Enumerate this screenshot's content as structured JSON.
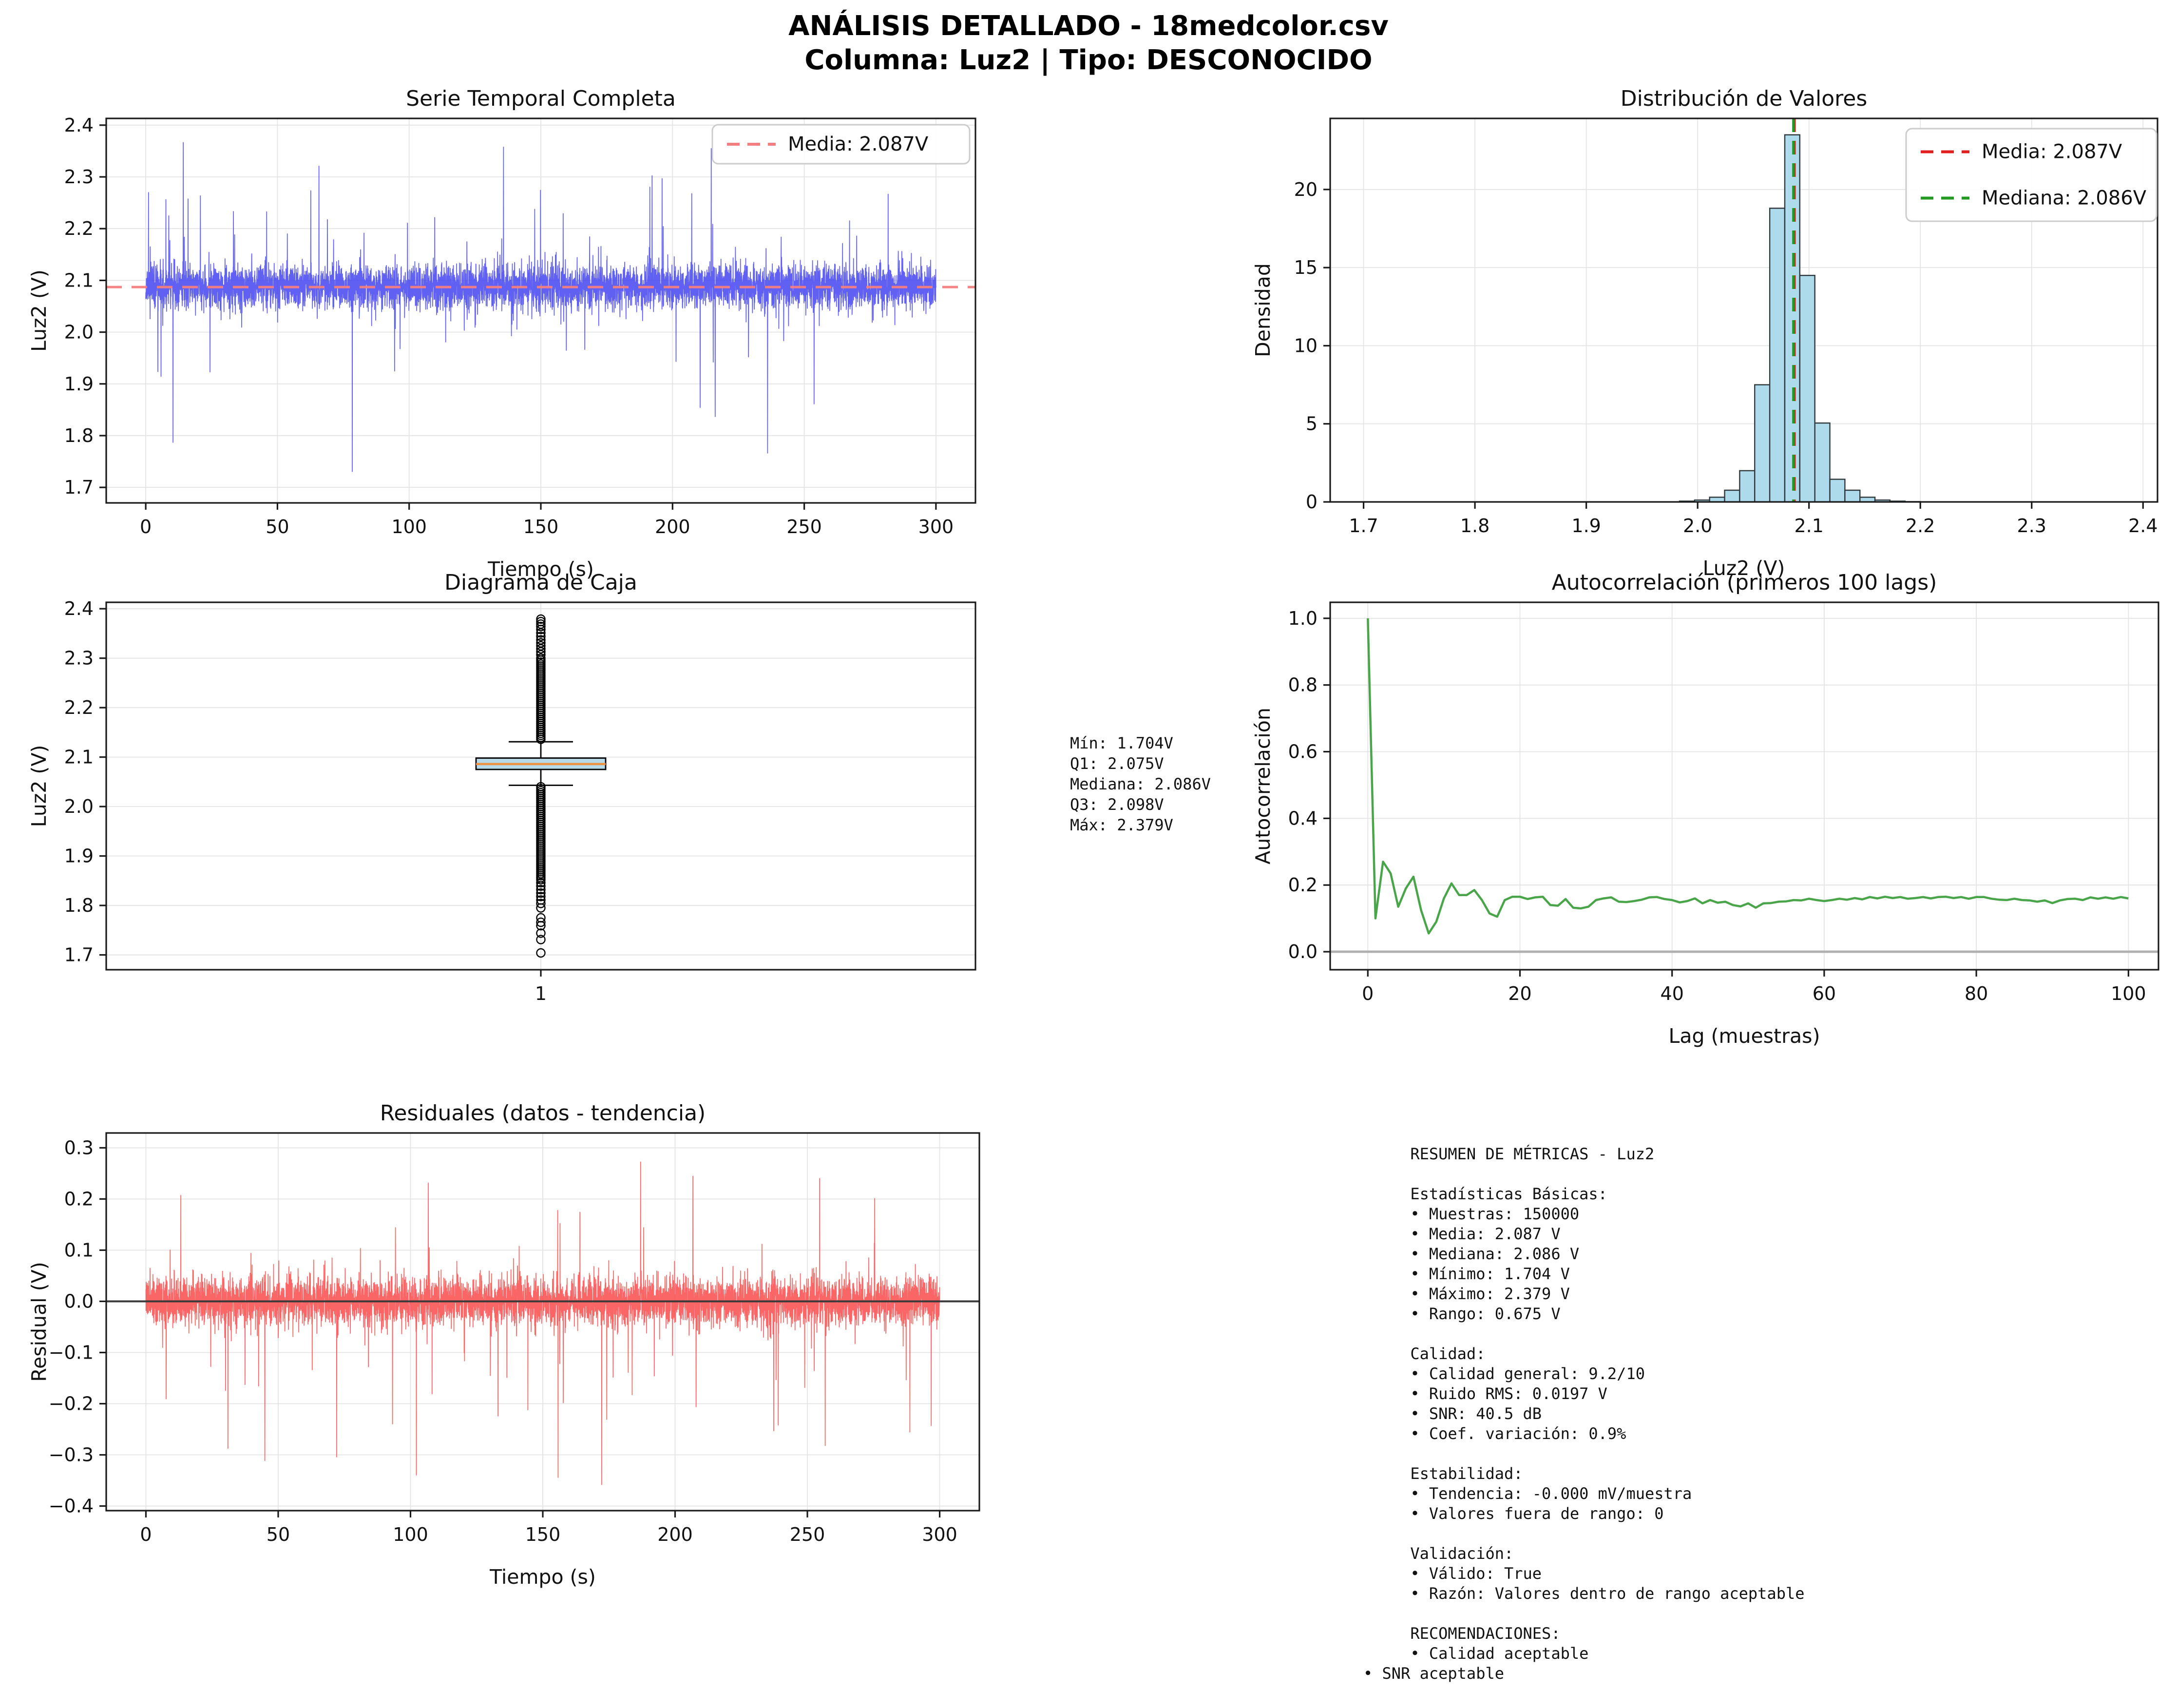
{
  "header": {
    "line1": "ANÁLISIS DETALLADO - 18medcolor.csv",
    "line2": "Columna: Luz2 | Tipo: DESCONOCIDO"
  },
  "colors": {
    "series_blue": "#3d3df0",
    "mean_salmon": "#f47d7d",
    "hist_mean_red": "#e21f1f",
    "median_green": "#229a22",
    "acf_green": "#4aa54a",
    "residual_red": "#f94b4b",
    "bar_fill": "#addbec",
    "bar_edge": "#2f373b",
    "box_fill": "#b7d9e8",
    "box_median_orange": "#ef9240",
    "grid": "#e4e4e4",
    "spine": "#1a1a1a",
    "zero_gray": "#b0b0b0"
  },
  "box_stats": {
    "text": "Mín: 1.704V\nQ1: 2.075V\nMediana: 2.086V\nQ3: 2.098V\nMáx: 2.379V"
  },
  "summary": {
    "text": "     RESUMEN DE MÉTRICAS - Luz2\n\n     Estadísticas Básicas:\n     • Muestras: 150000\n     • Media: 2.087 V\n     • Mediana: 2.086 V\n     • Mínimo: 1.704 V\n     • Máximo: 2.379 V\n     • Rango: 0.675 V\n\n     Calidad:\n     • Calidad general: 9.2/10\n     • Ruido RMS: 0.0197 V\n     • SNR: 40.5 dB\n     • Coef. variación: 0.9%\n\n     Estabilidad:\n     • Tendencia: -0.000 mV/muestra\n     • Valores fuera de rango: 0\n\n     Validación:\n     • Válido: True\n     • Razón: Valores dentro de rango aceptable\n\n     RECOMENDACIONES:\n     • Calidad aceptable\n• SNR aceptable"
  },
  "chart_data": [
    {
      "id": "timeseries",
      "type": "line",
      "title": "Serie Temporal Completa",
      "xlabel": "Tiempo (s)",
      "ylabel": "Luz2 (V)",
      "xlim": [
        -15,
        315
      ],
      "ylim": [
        1.67,
        2.413
      ],
      "xticks": {
        "values": [
          0,
          50,
          100,
          150,
          200,
          250,
          300
        ],
        "labels": [
          "0",
          "50",
          "100",
          "150",
          "200",
          "250",
          "300"
        ]
      },
      "yticks": {
        "values": [
          1.7,
          1.8,
          1.9,
          2.0,
          2.1,
          2.2,
          2.3,
          2.4
        ],
        "labels": [
          "1.7",
          "1.8",
          "1.9",
          "2.0",
          "2.1",
          "2.2",
          "2.3",
          "2.4"
        ]
      },
      "grid": true,
      "series_color": "#3d3df0",
      "mean_line": {
        "value": 2.087,
        "color": "#f47d7d",
        "dash": true
      },
      "legend": {
        "entries": [
          {
            "label": "Media: 2.087V",
            "color": "#f47d7d"
          }
        ]
      },
      "signal": {
        "seed": 11,
        "n": 6000,
        "t_max": 300,
        "mean": 2.088,
        "sd": 0.021,
        "pos_prob": 0.01,
        "pos_min": 0.04,
        "pos_max": 0.27,
        "neg_prob": 0.007,
        "neg_min": 0.04,
        "neg_max": 0.17,
        "deep_prob": 0.0013,
        "deep_min": 0.15,
        "deep_max": 0.36,
        "clamp": [
          1.702,
          2.383
        ]
      }
    },
    {
      "id": "histogram",
      "type": "bar",
      "title": "Distribución de Valores",
      "xlabel": "Luz2 (V)",
      "ylabel": "Densidad",
      "xlim": [
        1.67,
        2.413
      ],
      "ylim": [
        0,
        24.55
      ],
      "xticks": {
        "values": [
          1.7,
          1.8,
          1.9,
          2.0,
          2.1,
          2.2,
          2.3,
          2.4
        ],
        "labels": [
          "1.7",
          "1.8",
          "1.9",
          "2.0",
          "2.1",
          "2.2",
          "2.3",
          "2.4"
        ]
      },
      "yticks": {
        "values": [
          0,
          5,
          10,
          15,
          20
        ],
        "labels": [
          "0",
          "5",
          "10",
          "15",
          "20"
        ]
      },
      "grid": true,
      "bin_width": 0.0135,
      "bins": {
        "centers": [
          1.9905,
          2.004,
          2.0175,
          2.031,
          2.0445,
          2.058,
          2.0715,
          2.085,
          2.0985,
          2.112,
          2.1255,
          2.139,
          2.1525,
          2.166,
          2.1795,
          2.193
        ],
        "densities": [
          0.05,
          0.12,
          0.3,
          0.75,
          2.0,
          7.5,
          18.8,
          23.5,
          14.5,
          5.05,
          1.45,
          0.75,
          0.3,
          0.12,
          0.05,
          0.02
        ]
      },
      "bar_fill": "#addbec",
      "bar_edge": "#2f373b",
      "mean_line": {
        "value": 2.087,
        "color": "#e21f1f"
      },
      "median_line": {
        "value": 2.086,
        "color": "#229a22"
      },
      "legend": {
        "entries": [
          {
            "label": "Media: 2.087V",
            "color": "#e21f1f"
          },
          {
            "label": "Mediana: 2.086V",
            "color": "#229a22"
          }
        ]
      }
    },
    {
      "id": "boxplot",
      "type": "box",
      "title": "Diagrama de Caja",
      "xlabel": "",
      "ylabel": "Luz2 (V)",
      "xlim": [
        0.5,
        1.5
      ],
      "ylim": [
        1.67,
        2.413
      ],
      "xticks": {
        "values": [
          1
        ],
        "labels": [
          "1"
        ]
      },
      "yticks": {
        "values": [
          1.7,
          1.8,
          1.9,
          2.0,
          2.1,
          2.2,
          2.3,
          2.4
        ],
        "labels": [
          "1.7",
          "1.8",
          "1.9",
          "2.0",
          "2.1",
          "2.2",
          "2.3",
          "2.4"
        ]
      },
      "grid": true,
      "box": {
        "position": 1,
        "q1": 2.075,
        "median": 2.086,
        "q3": 2.098,
        "whisker_low": 2.043,
        "whisker_high": 2.131,
        "outliers_upper": {
          "dense": {
            "from": 2.136,
            "to": 2.302,
            "step": 0.004
          },
          "sparse": [
            2.307,
            2.313,
            2.319,
            2.325,
            2.331,
            2.337,
            2.344,
            2.351,
            2.358,
            2.364,
            2.369,
            2.374,
            2.379
          ]
        },
        "outliers_lower": {
          "dense": {
            "from": 2.04,
            "to": 1.852,
            "step": -0.004
          },
          "mid": {
            "from": 1.846,
            "to": 1.804,
            "step": -0.007
          },
          "sparse": [
            1.795,
            1.775,
            1.766,
            1.759,
            1.744,
            1.731,
            1.704
          ]
        }
      },
      "box_fill": "#b7d9e8",
      "median_color": "#ef9240"
    },
    {
      "id": "autocorr",
      "type": "line",
      "title": "Autocorrelación (primeros 100 lags)",
      "xlabel": "Lag (muestras)",
      "ylabel": "Autocorrelación",
      "xlim": [
        -4.95,
        103.95
      ],
      "ylim": [
        -0.054,
        1.048
      ],
      "xticks": {
        "values": [
          0,
          20,
          40,
          60,
          80,
          100
        ],
        "labels": [
          "0",
          "20",
          "40",
          "60",
          "80",
          "100"
        ]
      },
      "yticks": {
        "values": [
          0.0,
          0.2,
          0.4,
          0.6,
          0.8,
          1.0
        ],
        "labels": [
          "0.0",
          "0.2",
          "0.4",
          "0.6",
          "0.8",
          "1.0"
        ]
      },
      "grid": true,
      "zero_line_color": "#b0b0b0",
      "series_color": "#4aa54a",
      "acf": [
        1.0,
        0.1,
        0.27,
        0.235,
        0.135,
        0.19,
        0.225,
        0.125,
        0.055,
        0.09,
        0.16,
        0.205,
        0.17,
        0.17,
        0.185,
        0.155,
        0.115,
        0.105,
        0.155,
        0.165,
        0.165,
        0.158,
        0.163,
        0.165,
        0.14,
        0.138,
        0.158,
        0.132,
        0.13,
        0.135,
        0.155,
        0.16,
        0.163,
        0.15,
        0.149,
        0.152,
        0.156,
        0.163,
        0.164,
        0.158,
        0.155,
        0.148,
        0.152,
        0.16,
        0.145,
        0.155,
        0.147,
        0.15,
        0.14,
        0.136,
        0.145,
        0.132,
        0.145,
        0.146,
        0.15,
        0.151,
        0.155,
        0.154,
        0.159,
        0.155,
        0.152,
        0.155,
        0.159,
        0.156,
        0.161,
        0.157,
        0.164,
        0.16,
        0.165,
        0.161,
        0.164,
        0.159,
        0.161,
        0.164,
        0.16,
        0.164,
        0.165,
        0.161,
        0.164,
        0.159,
        0.164,
        0.164,
        0.159,
        0.156,
        0.155,
        0.159,
        0.155,
        0.154,
        0.15,
        0.154,
        0.146,
        0.154,
        0.158,
        0.159,
        0.155,
        0.163,
        0.159,
        0.163,
        0.159,
        0.164,
        0.16
      ]
    },
    {
      "id": "residuals",
      "type": "line",
      "title": "Residuales (datos - tendencia)",
      "xlabel": "Tiempo (s)",
      "ylabel": "Residual (V)",
      "xlim": [
        -15,
        315
      ],
      "ylim": [
        -0.409,
        0.329
      ],
      "xticks": {
        "values": [
          0,
          50,
          100,
          150,
          200,
          250,
          300
        ],
        "labels": [
          "0",
          "50",
          "100",
          "150",
          "200",
          "250",
          "300"
        ]
      },
      "yticks": {
        "values": [
          -0.4,
          -0.3,
          -0.2,
          -0.1,
          0.0,
          0.1,
          0.2,
          0.3
        ],
        "labels": [
          "−0.4",
          "−0.3",
          "−0.2",
          "−0.1",
          "0.0",
          "0.1",
          "0.2",
          "0.3"
        ]
      },
      "grid": true,
      "zero_line_color": "#3a3a3a",
      "series_color": "#f94b4b",
      "signal": {
        "seed": 29,
        "n": 6000,
        "t_max": 300,
        "mean": 0,
        "sd": 0.023,
        "pos_prob": 0.008,
        "pos_min": 0.04,
        "pos_max": 0.26,
        "neg_prob": 0.008,
        "neg_min": 0.04,
        "neg_max": 0.25,
        "deep_prob": 0.0009,
        "deep_min": 0.18,
        "deep_max": 0.34,
        "clamp": [
          -0.373,
          0.293
        ]
      }
    }
  ]
}
